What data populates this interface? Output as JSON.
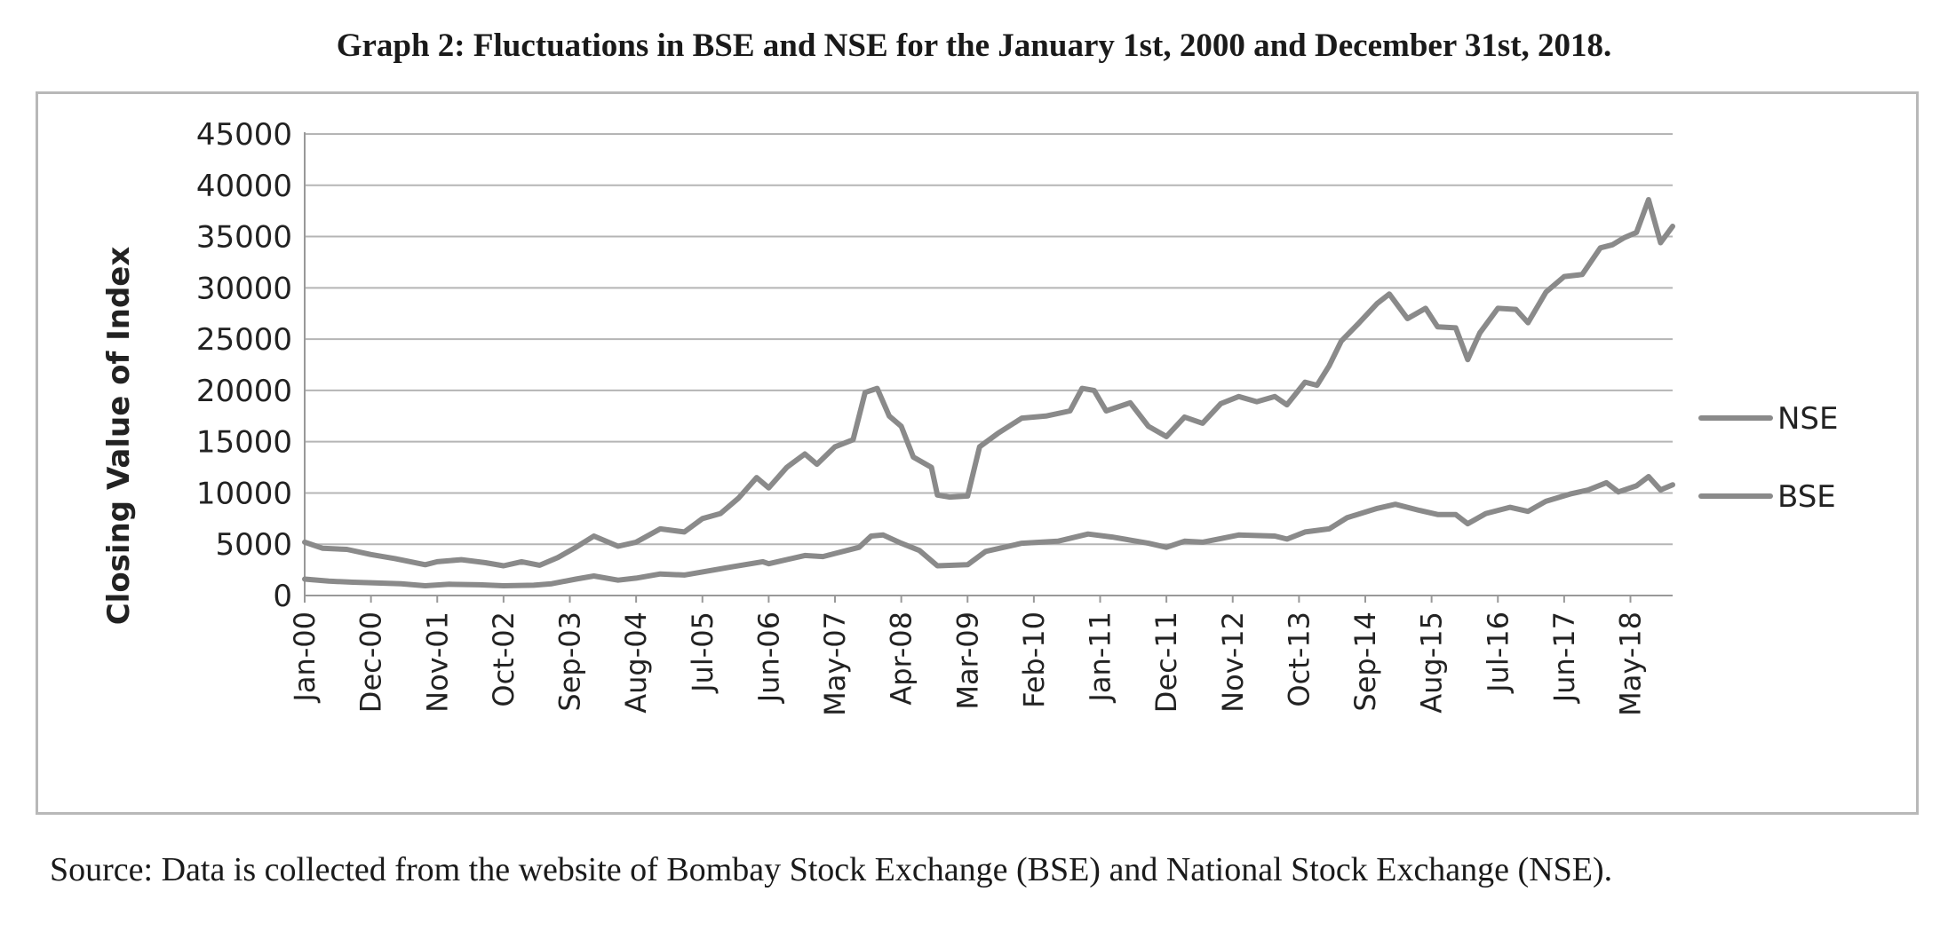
{
  "figure": {
    "title": "Graph 2: Fluctuations in BSE and NSE for the January 1st, 2000 and December 31st, 2018.",
    "source": "Source: Data is collected from the website of Bombay Stock Exchange (BSE) and National Stock Exchange (NSE)."
  },
  "chart_data": {
    "type": "line",
    "ylabel": "Closing  Value of Index",
    "ylim": [
      0,
      45000
    ],
    "yticks": [
      0,
      5000,
      10000,
      15000,
      20000,
      25000,
      30000,
      35000,
      40000,
      45000
    ],
    "xlim": [
      "2000-01",
      "2018-12"
    ],
    "xtick_labels": [
      {
        "label": "Jan-00",
        "date": "2000-01"
      },
      {
        "label": "Dec-00",
        "date": "2000-12"
      },
      {
        "label": "Nov-01",
        "date": "2001-11"
      },
      {
        "label": "Oct-02",
        "date": "2002-10"
      },
      {
        "label": "Sep-03",
        "date": "2003-09"
      },
      {
        "label": "Aug-04",
        "date": "2004-08"
      },
      {
        "label": "Jul-05",
        "date": "2005-07"
      },
      {
        "label": "Jun-06",
        "date": "2006-06"
      },
      {
        "label": "May-07",
        "date": "2007-05"
      },
      {
        "label": "Apr-08",
        "date": "2008-04"
      },
      {
        "label": "Mar-09",
        "date": "2009-03"
      },
      {
        "label": "Feb-10",
        "date": "2010-02"
      },
      {
        "label": "Jan-11",
        "date": "2011-01"
      },
      {
        "label": "Dec-11",
        "date": "2011-12"
      },
      {
        "label": "Nov-12",
        "date": "2012-11"
      },
      {
        "label": "Oct-13",
        "date": "2013-10"
      },
      {
        "label": "Sep-14",
        "date": "2014-09"
      },
      {
        "label": "Aug-15",
        "date": "2015-08"
      },
      {
        "label": "Jul-16",
        "date": "2016-07"
      },
      {
        "label": "Jun-17",
        "date": "2017-06"
      },
      {
        "label": "May-18",
        "date": "2018-05"
      }
    ],
    "grid": true,
    "legend_position": "right",
    "series": [
      {
        "name": "NSE",
        "color": "#8a8a8a",
        "points": [
          [
            "2000-01",
            5200
          ],
          [
            "2000-04",
            4600
          ],
          [
            "2000-08",
            4500
          ],
          [
            "2000-12",
            4000
          ],
          [
            "2001-04",
            3600
          ],
          [
            "2001-09",
            3000
          ],
          [
            "2001-11",
            3300
          ],
          [
            "2002-03",
            3500
          ],
          [
            "2002-07",
            3200
          ],
          [
            "2002-10",
            2900
          ],
          [
            "2003-01",
            3300
          ],
          [
            "2003-04",
            2950
          ],
          [
            "2003-07",
            3700
          ],
          [
            "2003-10",
            4700
          ],
          [
            "2004-01",
            5800
          ],
          [
            "2004-05",
            4800
          ],
          [
            "2004-08",
            5200
          ],
          [
            "2004-12",
            6500
          ],
          [
            "2005-04",
            6200
          ],
          [
            "2005-07",
            7500
          ],
          [
            "2005-10",
            8000
          ],
          [
            "2006-01",
            9500
          ],
          [
            "2006-04",
            11500
          ],
          [
            "2006-06",
            10500
          ],
          [
            "2006-09",
            12500
          ],
          [
            "2006-12",
            13800
          ],
          [
            "2007-02",
            12800
          ],
          [
            "2007-05",
            14500
          ],
          [
            "2007-08",
            15200
          ],
          [
            "2007-10",
            19800
          ],
          [
            "2007-12",
            20200
          ],
          [
            "2008-02",
            17500
          ],
          [
            "2008-04",
            16500
          ],
          [
            "2008-06",
            13500
          ],
          [
            "2008-09",
            12500
          ],
          [
            "2008-10",
            9800
          ],
          [
            "2008-12",
            9600
          ],
          [
            "2009-03",
            9700
          ],
          [
            "2009-05",
            14500
          ],
          [
            "2009-08",
            15800
          ],
          [
            "2009-12",
            17300
          ],
          [
            "2010-04",
            17500
          ],
          [
            "2010-08",
            18000
          ],
          [
            "2010-10",
            20200
          ],
          [
            "2010-12",
            20000
          ],
          [
            "2011-02",
            18000
          ],
          [
            "2011-06",
            18800
          ],
          [
            "2011-09",
            16500
          ],
          [
            "2011-12",
            15500
          ],
          [
            "2012-03",
            17400
          ],
          [
            "2012-06",
            16800
          ],
          [
            "2012-09",
            18700
          ],
          [
            "2012-12",
            19400
          ],
          [
            "2013-03",
            18900
          ],
          [
            "2013-06",
            19400
          ],
          [
            "2013-08",
            18600
          ],
          [
            "2013-11",
            20800
          ],
          [
            "2014-01",
            20500
          ],
          [
            "2014-03",
            22400
          ],
          [
            "2014-05",
            24800
          ],
          [
            "2014-08",
            26600
          ],
          [
            "2014-11",
            28500
          ],
          [
            "2015-01",
            29400
          ],
          [
            "2015-04",
            27000
          ],
          [
            "2015-07",
            28000
          ],
          [
            "2015-09",
            26200
          ],
          [
            "2015-12",
            26100
          ],
          [
            "2016-02",
            23000
          ],
          [
            "2016-04",
            25600
          ],
          [
            "2016-07",
            28000
          ],
          [
            "2016-10",
            27900
          ],
          [
            "2016-12",
            26600
          ],
          [
            "2017-03",
            29600
          ],
          [
            "2017-06",
            31100
          ],
          [
            "2017-09",
            31300
          ],
          [
            "2017-12",
            33900
          ],
          [
            "2018-02",
            34200
          ],
          [
            "2018-04",
            34900
          ],
          [
            "2018-06",
            35400
          ],
          [
            "2018-08",
            38600
          ],
          [
            "2018-10",
            34400
          ],
          [
            "2018-12",
            36000
          ]
        ]
      },
      {
        "name": "BSE",
        "color": "#8a8a8a",
        "points": [
          [
            "2000-01",
            1600
          ],
          [
            "2000-05",
            1400
          ],
          [
            "2000-09",
            1300
          ],
          [
            "2000-12",
            1250
          ],
          [
            "2001-05",
            1150
          ],
          [
            "2001-09",
            950
          ],
          [
            "2002-01",
            1100
          ],
          [
            "2002-06",
            1050
          ],
          [
            "2002-10",
            950
          ],
          [
            "2003-03",
            1000
          ],
          [
            "2003-06",
            1150
          ],
          [
            "2003-10",
            1600
          ],
          [
            "2004-01",
            1900
          ],
          [
            "2004-05",
            1500
          ],
          [
            "2004-08",
            1700
          ],
          [
            "2004-12",
            2100
          ],
          [
            "2005-04",
            2000
          ],
          [
            "2005-07",
            2300
          ],
          [
            "2005-12",
            2800
          ],
          [
            "2006-05",
            3300
          ],
          [
            "2006-06",
            3100
          ],
          [
            "2006-12",
            3900
          ],
          [
            "2007-03",
            3800
          ],
          [
            "2007-05",
            4100
          ],
          [
            "2007-09",
            4700
          ],
          [
            "2007-11",
            5800
          ],
          [
            "2008-01",
            5900
          ],
          [
            "2008-04",
            5100
          ],
          [
            "2008-07",
            4400
          ],
          [
            "2008-10",
            2900
          ],
          [
            "2009-03",
            3000
          ],
          [
            "2009-06",
            4300
          ],
          [
            "2009-12",
            5100
          ],
          [
            "2010-06",
            5300
          ],
          [
            "2010-11",
            6000
          ],
          [
            "2011-03",
            5700
          ],
          [
            "2011-09",
            5100
          ],
          [
            "2011-12",
            4700
          ],
          [
            "2012-03",
            5300
          ],
          [
            "2012-06",
            5200
          ],
          [
            "2012-12",
            5900
          ],
          [
            "2013-06",
            5800
          ],
          [
            "2013-08",
            5500
          ],
          [
            "2013-11",
            6200
          ],
          [
            "2014-03",
            6500
          ],
          [
            "2014-06",
            7600
          ],
          [
            "2014-11",
            8500
          ],
          [
            "2015-02",
            8900
          ],
          [
            "2015-06",
            8300
          ],
          [
            "2015-09",
            7900
          ],
          [
            "2015-12",
            7900
          ],
          [
            "2016-02",
            7000
          ],
          [
            "2016-05",
            8000
          ],
          [
            "2016-09",
            8600
          ],
          [
            "2016-12",
            8200
          ],
          [
            "2017-03",
            9200
          ],
          [
            "2017-07",
            9900
          ],
          [
            "2017-10",
            10300
          ],
          [
            "2018-01",
            11000
          ],
          [
            "2018-03",
            10100
          ],
          [
            "2018-06",
            10700
          ],
          [
            "2018-08",
            11600
          ],
          [
            "2018-10",
            10300
          ],
          [
            "2018-12",
            10800
          ]
        ]
      }
    ]
  }
}
